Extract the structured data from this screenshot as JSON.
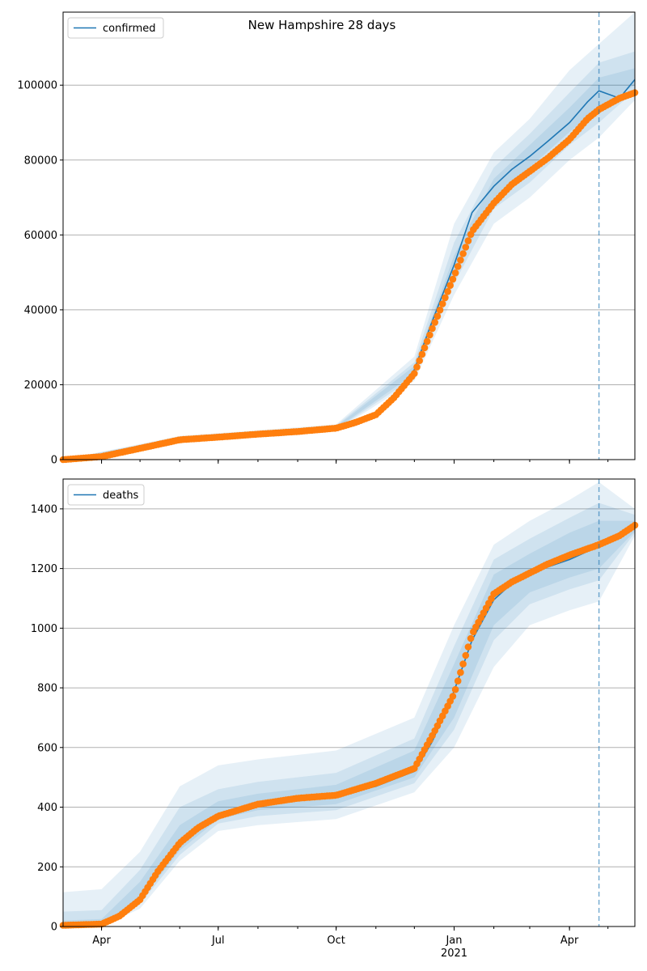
{
  "figure_title": "New Hampshire 28 days",
  "colors": {
    "model": "#1f77b4",
    "observed": "#ff7f0e",
    "band": "#c6dbef",
    "grid": "#b0b0b0",
    "forecast_line": "#1f77b4"
  },
  "chart_data": [
    {
      "type": "line",
      "title": "New Hampshire 28 days",
      "xlabel": "",
      "ylabel": "",
      "legend": "top-left",
      "grid": "y",
      "x_tick_labels": [
        "Apr",
        "Jul",
        "Oct",
        "Jan\n2021",
        "Apr"
      ],
      "x_tick_dates": [
        "2020-04-01",
        "2020-07-01",
        "2020-10-01",
        "2021-01-01",
        "2021-04-01"
      ],
      "xlim": [
        "2020-03-02",
        "2021-05-22"
      ],
      "forecast_start": "2021-04-24",
      "ylim": [
        0,
        119500
      ],
      "y_ticks": [
        0,
        20000,
        40000,
        60000,
        80000,
        100000
      ],
      "series": [
        {
          "name": "confirmed",
          "kind": "model",
          "x": [
            "2020-03-02",
            "2020-04-01",
            "2020-05-01",
            "2020-06-01",
            "2020-07-01",
            "2020-08-01",
            "2020-09-01",
            "2020-10-01",
            "2020-10-15",
            "2020-11-01",
            "2020-11-15",
            "2020-12-01",
            "2020-12-15",
            "2021-01-01",
            "2021-01-15",
            "2021-02-01",
            "2021-02-15",
            "2021-03-01",
            "2021-03-15",
            "2021-04-01",
            "2021-04-15",
            "2021-04-24",
            "2021-05-10",
            "2021-05-22"
          ],
          "values": [
            0,
            900,
            3300,
            5600,
            6200,
            7000,
            7700,
            8500,
            10000,
            12500,
            17000,
            24000,
            37000,
            52000,
            66000,
            73000,
            77500,
            81000,
            85000,
            90000,
            95500,
            98500,
            96500,
            101500
          ]
        },
        {
          "name": "",
          "kind": "observed",
          "x": [
            "2020-03-02",
            "2020-04-01",
            "2020-05-01",
            "2020-06-01",
            "2020-07-01",
            "2020-08-01",
            "2020-09-01",
            "2020-10-01",
            "2020-10-15",
            "2020-11-01",
            "2020-11-15",
            "2020-12-01",
            "2020-12-15",
            "2021-01-01",
            "2021-01-15",
            "2021-02-01",
            "2021-02-15",
            "2021-03-01",
            "2021-03-15",
            "2021-04-01",
            "2021-04-15",
            "2021-04-24",
            "2021-05-10",
            "2021-05-22"
          ],
          "values": [
            0,
            800,
            3000,
            5300,
            6000,
            6800,
            7500,
            8400,
            9800,
            12000,
            16500,
            23000,
            35000,
            49000,
            61000,
            68500,
            73500,
            77000,
            80500,
            85500,
            91000,
            93500,
            96500,
            98000
          ]
        }
      ],
      "bands": [
        {
          "x": [
            "2020-03-02",
            "2020-06-01",
            "2020-10-01",
            "2020-12-01",
            "2021-01-01",
            "2021-02-01",
            "2021-03-01",
            "2021-04-01",
            "2021-04-24",
            "2021-05-22"
          ],
          "lower": [
            0,
            5000,
            7700,
            21000,
            44000,
            63000,
            70000,
            80000,
            86000,
            96000
          ],
          "upper": [
            0,
            6300,
            9400,
            27500,
            63000,
            82000,
            91000,
            104000,
            111000,
            119500
          ]
        },
        {
          "x": [
            "2020-03-02",
            "2020-06-01",
            "2020-10-01",
            "2020-12-01",
            "2021-01-01",
            "2021-02-01",
            "2021-03-01",
            "2021-04-01",
            "2021-04-24",
            "2021-05-22"
          ],
          "lower": [
            0,
            5200,
            8000,
            22000,
            47000,
            67000,
            74000,
            84000,
            90000,
            98500
          ],
          "upper": [
            0,
            6000,
            9100,
            26000,
            58000,
            78000,
            87000,
            98000,
            106000,
            109000
          ]
        },
        {
          "x": [
            "2020-03-02",
            "2020-06-01",
            "2020-10-01",
            "2020-12-01",
            "2021-01-01",
            "2021-02-01",
            "2021-03-01",
            "2021-04-01",
            "2021-04-24",
            "2021-05-22"
          ],
          "lower": [
            0,
            5400,
            8200,
            23000,
            49500,
            70000,
            78000,
            87500,
            94000,
            100000
          ],
          "upper": [
            0,
            5800,
            8800,
            25000,
            54500,
            75000,
            84000,
            94000,
            102000,
            104500
          ]
        }
      ]
    },
    {
      "type": "line",
      "title": "",
      "xlabel": "",
      "ylabel": "",
      "legend": "top-left",
      "grid": "y",
      "x_tick_labels": [
        "Apr",
        "Jul",
        "Oct",
        "Jan\n2021",
        "Apr"
      ],
      "x_tick_dates": [
        "2020-04-01",
        "2020-07-01",
        "2020-10-01",
        "2021-01-01",
        "2021-04-01"
      ],
      "xlim": [
        "2020-03-02",
        "2021-05-22"
      ],
      "forecast_start": "2021-04-24",
      "ylim": [
        0,
        1500
      ],
      "y_ticks": [
        0,
        200,
        400,
        600,
        800,
        1000,
        1200,
        1400
      ],
      "series": [
        {
          "name": "deaths",
          "kind": "model",
          "x": [
            "2020-03-02",
            "2020-04-01",
            "2020-04-15",
            "2020-05-01",
            "2020-05-15",
            "2020-06-01",
            "2020-06-15",
            "2020-07-01",
            "2020-08-01",
            "2020-09-01",
            "2020-10-01",
            "2020-11-01",
            "2020-12-01",
            "2020-12-15",
            "2021-01-01",
            "2021-01-15",
            "2021-02-01",
            "2021-02-15",
            "2021-03-01",
            "2021-03-15",
            "2021-04-01",
            "2021-04-24",
            "2021-05-10",
            "2021-05-22"
          ],
          "values": [
            5,
            10,
            40,
            100,
            190,
            275,
            335,
            375,
            410,
            430,
            440,
            470,
            520,
            620,
            790,
            960,
            1095,
            1150,
            1180,
            1205,
            1230,
            1275,
            1305,
            1340
          ]
        },
        {
          "name": "",
          "kind": "observed",
          "x": [
            "2020-03-02",
            "2020-04-01",
            "2020-04-15",
            "2020-05-01",
            "2020-05-15",
            "2020-06-01",
            "2020-06-15",
            "2020-07-01",
            "2020-08-01",
            "2020-09-01",
            "2020-10-01",
            "2020-11-01",
            "2020-12-01",
            "2020-12-15",
            "2021-01-01",
            "2021-01-15",
            "2021-02-01",
            "2021-02-15",
            "2021-03-01",
            "2021-03-15",
            "2021-04-01",
            "2021-04-24",
            "2021-05-10",
            "2021-05-22"
          ],
          "values": [
            4,
            8,
            35,
            90,
            185,
            280,
            330,
            370,
            410,
            430,
            440,
            480,
            530,
            640,
            780,
            980,
            1115,
            1155,
            1185,
            1215,
            1245,
            1280,
            1310,
            1345
          ]
        }
      ],
      "bands": [
        {
          "x": [
            "2020-03-02",
            "2020-04-01",
            "2020-05-01",
            "2020-06-01",
            "2020-07-01",
            "2020-08-01",
            "2020-10-01",
            "2020-12-01",
            "2021-01-01",
            "2021-02-01",
            "2021-03-01",
            "2021-04-01",
            "2021-04-24",
            "2021-05-22"
          ],
          "lower": [
            0,
            0,
            60,
            220,
            320,
            340,
            360,
            450,
            600,
            870,
            1010,
            1060,
            1090,
            1310
          ],
          "upper": [
            115,
            125,
            250,
            470,
            540,
            560,
            590,
            700,
            1010,
            1280,
            1360,
            1430,
            1490,
            1400
          ]
        },
        {
          "x": [
            "2020-03-02",
            "2020-04-01",
            "2020-05-01",
            "2020-06-01",
            "2020-07-01",
            "2020-08-01",
            "2020-10-01",
            "2020-12-01",
            "2021-01-01",
            "2021-02-01",
            "2021-03-01",
            "2021-04-01",
            "2021-04-24",
            "2021-05-22"
          ],
          "lower": [
            0,
            0,
            75,
            240,
            345,
            370,
            390,
            480,
            660,
            960,
            1080,
            1130,
            1160,
            1320
          ],
          "upper": [
            50,
            55,
            190,
            400,
            460,
            485,
            515,
            630,
            940,
            1230,
            1300,
            1370,
            1420,
            1380
          ]
        },
        {
          "x": [
            "2020-03-02",
            "2020-04-01",
            "2020-05-01",
            "2020-06-01",
            "2020-07-01",
            "2020-08-01",
            "2020-10-01",
            "2020-12-01",
            "2021-01-01",
            "2021-02-01",
            "2021-03-01",
            "2021-04-01",
            "2021-04-24",
            "2021-05-22"
          ],
          "lower": [
            0,
            0,
            85,
            255,
            360,
            390,
            410,
            500,
            700,
            1010,
            1120,
            1170,
            1200,
            1325
          ],
          "upper": [
            20,
            25,
            150,
            340,
            420,
            445,
            475,
            590,
            880,
            1180,
            1250,
            1320,
            1360,
            1360
          ]
        }
      ]
    }
  ]
}
